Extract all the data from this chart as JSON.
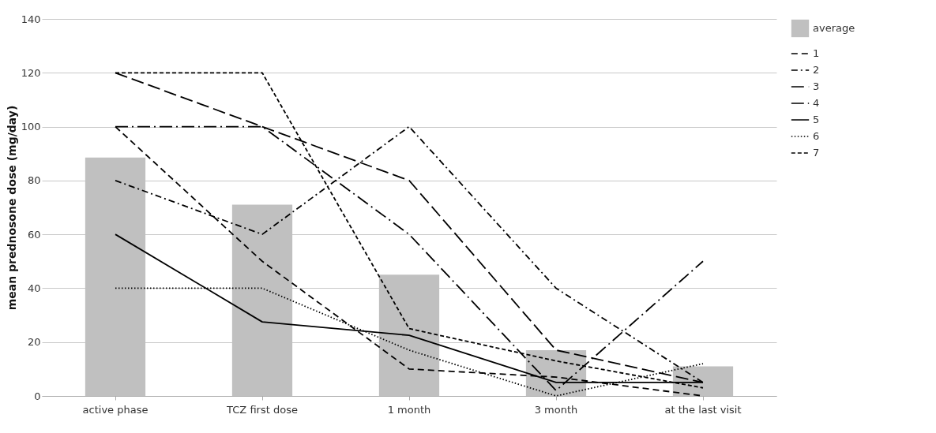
{
  "chart_data": {
    "type": "bar",
    "ylabel": "mean prednosone dose (mg/day)",
    "categories": [
      "active phase",
      "TCZ first dose",
      "1 month",
      "3 month",
      "at the last visit"
    ],
    "series": [
      {
        "name": "average",
        "color": "#c0c0c0",
        "values": [
          88.5,
          71,
          45,
          17,
          11
        ]
      },
      {
        "name": "1",
        "type": "line",
        "color": "#000000",
        "line_style": "dashed",
        "values": [
          100,
          50,
          10,
          7,
          0
        ]
      },
      {
        "name": "2",
        "type": "line",
        "color": "#000000",
        "line_style": "dashdot",
        "values": [
          80,
          60,
          100,
          40,
          5
        ]
      },
      {
        "name": "3",
        "type": "line",
        "color": "#000000",
        "line_style": "longdash",
        "values": [
          120,
          100,
          80,
          17,
          5
        ]
      },
      {
        "name": "4",
        "type": "line",
        "color": "#000000",
        "line_style": "longdashdot",
        "values": [
          100,
          100,
          60,
          2,
          50
        ]
      },
      {
        "name": "5",
        "type": "line",
        "color": "#000000",
        "line_style": "solid",
        "values": [
          60,
          27.5,
          22.5,
          5,
          5
        ]
      },
      {
        "name": "6",
        "type": "line",
        "color": "#000000",
        "line_style": "dotted",
        "values": [
          40,
          40,
          17,
          0,
          12
        ]
      },
      {
        "name": "7",
        "type": "line",
        "color": "#000000",
        "line_style": "shortdash",
        "values": [
          120,
          120,
          25,
          13,
          3
        ]
      }
    ],
    "ylim": [
      0,
      140
    ],
    "yticks": [
      0,
      20,
      40,
      60,
      80,
      100,
      120,
      140
    ],
    "grid": "y",
    "legend": "right"
  }
}
